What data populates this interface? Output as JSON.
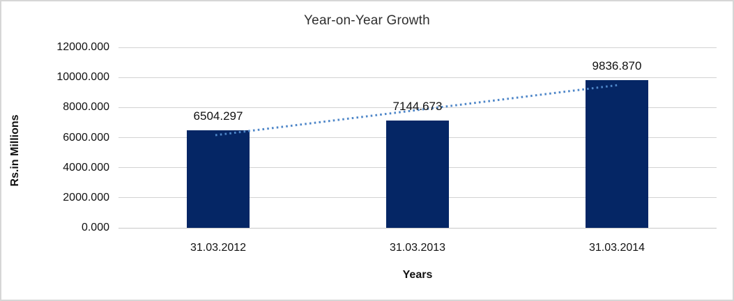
{
  "frame": {
    "background": "#ffffff",
    "border_color": "#d6d6d6"
  },
  "chart_data": {
    "type": "bar",
    "title": "Year-on-Year Growth",
    "xlabel": "Years",
    "ylabel": "Rs.in Millions",
    "categories": [
      "31.03.2012",
      "31.03.2013",
      "31.03.2014"
    ],
    "values": [
      6504.297,
      7144.673,
      9836.87
    ],
    "data_labels": [
      "6504.297",
      "7144.673",
      "9836.870"
    ],
    "ylim": [
      0,
      12000
    ],
    "ytick_values": [
      0,
      2000,
      4000,
      6000,
      8000,
      10000,
      12000
    ],
    "ytick_labels": [
      "0.000",
      "2000.000",
      "4000.000",
      "6000.000",
      "8000.000",
      "10000.000",
      "12000.000"
    ],
    "grid": true,
    "legend": "none",
    "bar_color": "#052665",
    "text_color": "#111111",
    "gridline_color": "#d2d2d2",
    "trendline": {
      "type": "linear",
      "style": "dotted",
      "color": "#4e86c8"
    }
  }
}
